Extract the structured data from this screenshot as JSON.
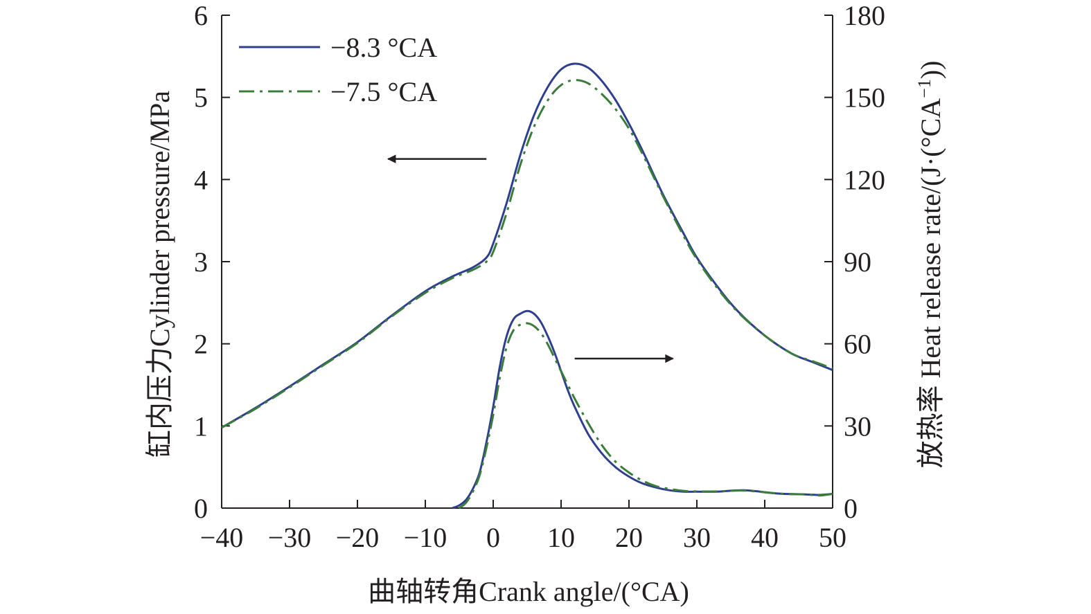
{
  "chart_data": {
    "type": "line",
    "xlabel": "曲轴转角Crank angle/(°CA)",
    "ylabel_left": "缸内压力Cylinder pressure/MPa",
    "ylabel_right_prefix": "放热率 Heat release rate/(J·(°CA",
    "ylabel_right_sup": "−1",
    "ylabel_right_suffix": "))",
    "xlim": [
      -40,
      50
    ],
    "ylim_left": [
      0,
      6
    ],
    "ylim_right": [
      0,
      180
    ],
    "xticks": [
      -40,
      -30,
      -20,
      -10,
      0,
      10,
      20,
      30,
      40,
      50
    ],
    "xtick_labels": [
      "−40",
      "−30",
      "−20",
      "−10",
      "0",
      "10",
      "20",
      "30",
      "40",
      "50"
    ],
    "yticks_left": [
      0,
      1,
      2,
      3,
      4,
      5,
      6
    ],
    "ytick_labels_left": [
      "0",
      "1",
      "2",
      "3",
      "4",
      "5",
      "6"
    ],
    "yticks_right": [
      0,
      30,
      60,
      90,
      120,
      150,
      180
    ],
    "ytick_labels_right": [
      "0",
      "30",
      "60",
      "90",
      "120",
      "150",
      "180"
    ],
    "grid": false,
    "legend_position": "top-left",
    "legend": [
      {
        "label": "−8.3 °CA",
        "color": "#2e3f8f",
        "style": "solid"
      },
      {
        "label": "−7.5 °CA",
        "color": "#3a7d3a",
        "style": "dashdot"
      }
    ],
    "annotations": [
      {
        "type": "arrow",
        "direction": "left",
        "points_to": "left axis (cylinder pressure)",
        "anchor_data": [
          -1,
          4.25
        ]
      },
      {
        "type": "arrow",
        "direction": "right",
        "points_to": "right axis (heat release rate)",
        "anchor_data": [
          12,
          1.82
        ]
      }
    ],
    "series": [
      {
        "name": "−8.3 °CA",
        "quantity": "cylinder pressure",
        "axis": "left",
        "color": "#2e3f8f",
        "style": "solid",
        "x": [
          -40,
          -35,
          -30,
          -25,
          -20,
          -15,
          -10,
          -6,
          -3,
          -1,
          0,
          2,
          4,
          6,
          8,
          10,
          12,
          14,
          16,
          18,
          20,
          22,
          25,
          28,
          30,
          33,
          36,
          40,
          44,
          47,
          50
        ],
        "y": [
          0.98,
          1.22,
          1.48,
          1.75,
          2.02,
          2.34,
          2.64,
          2.82,
          2.93,
          3.05,
          3.22,
          3.72,
          4.3,
          4.78,
          5.12,
          5.34,
          5.41,
          5.36,
          5.2,
          4.97,
          4.68,
          4.35,
          3.82,
          3.35,
          3.05,
          2.7,
          2.4,
          2.1,
          1.88,
          1.78,
          1.68
        ]
      },
      {
        "name": "−7.5 °CA",
        "quantity": "cylinder pressure",
        "axis": "left",
        "color": "#3a7d3a",
        "style": "dashdot",
        "x": [
          -40,
          -35,
          -30,
          -25,
          -20,
          -15,
          -10,
          -6,
          -3,
          -1,
          0,
          2,
          4,
          6,
          8,
          10,
          12,
          14,
          16,
          18,
          20,
          22,
          25,
          28,
          30,
          33,
          36,
          40,
          44,
          47,
          50
        ],
        "y": [
          0.98,
          1.21,
          1.47,
          1.74,
          2.01,
          2.33,
          2.62,
          2.8,
          2.9,
          3.0,
          3.12,
          3.6,
          4.18,
          4.64,
          4.96,
          5.15,
          5.21,
          5.17,
          5.04,
          4.86,
          4.62,
          4.31,
          3.8,
          3.32,
          3.03,
          2.68,
          2.39,
          2.1,
          1.88,
          1.79,
          1.7
        ]
      },
      {
        "name": "−8.3 °CA",
        "quantity": "heat release rate",
        "axis": "right",
        "color": "#2e3f8f",
        "style": "solid",
        "x": [
          -6,
          -5,
          -4,
          -3,
          -2,
          -1,
          0,
          1,
          2,
          3,
          4,
          5,
          6,
          7,
          8,
          9,
          10,
          11,
          12,
          14,
          16,
          18,
          20,
          22,
          24,
          26,
          28,
          30,
          33,
          37,
          42,
          46,
          48,
          50
        ],
        "y": [
          0,
          1,
          3,
          7,
          13,
          24,
          37,
          52,
          63,
          69,
          71,
          72,
          71,
          68,
          63,
          57,
          50,
          43,
          37,
          27,
          20,
          15,
          11.5,
          9,
          7.5,
          6.5,
          6,
          6,
          6,
          6.5,
          5.3,
          5,
          4.8,
          5.2
        ]
      },
      {
        "name": "−7.5 °CA",
        "quantity": "heat release rate",
        "axis": "right",
        "color": "#3a7d3a",
        "style": "dashdot",
        "x": [
          -5,
          -4,
          -3,
          -2,
          -1,
          0,
          1,
          2,
          3,
          4,
          5,
          6,
          7,
          8,
          9,
          10,
          11,
          12,
          14,
          16,
          18,
          20,
          22,
          24,
          26,
          28,
          30,
          33,
          37,
          42,
          46,
          48,
          50
        ],
        "y": [
          0,
          2,
          6,
          12,
          22,
          34,
          48,
          59,
          65,
          67,
          67.5,
          66.5,
          64,
          60,
          55,
          50,
          45,
          40,
          31,
          23,
          17,
          13,
          10,
          8,
          7,
          6.3,
          6.1,
          6.1,
          6.4,
          5.3,
          5,
          4.6,
          5.2
        ]
      }
    ]
  }
}
